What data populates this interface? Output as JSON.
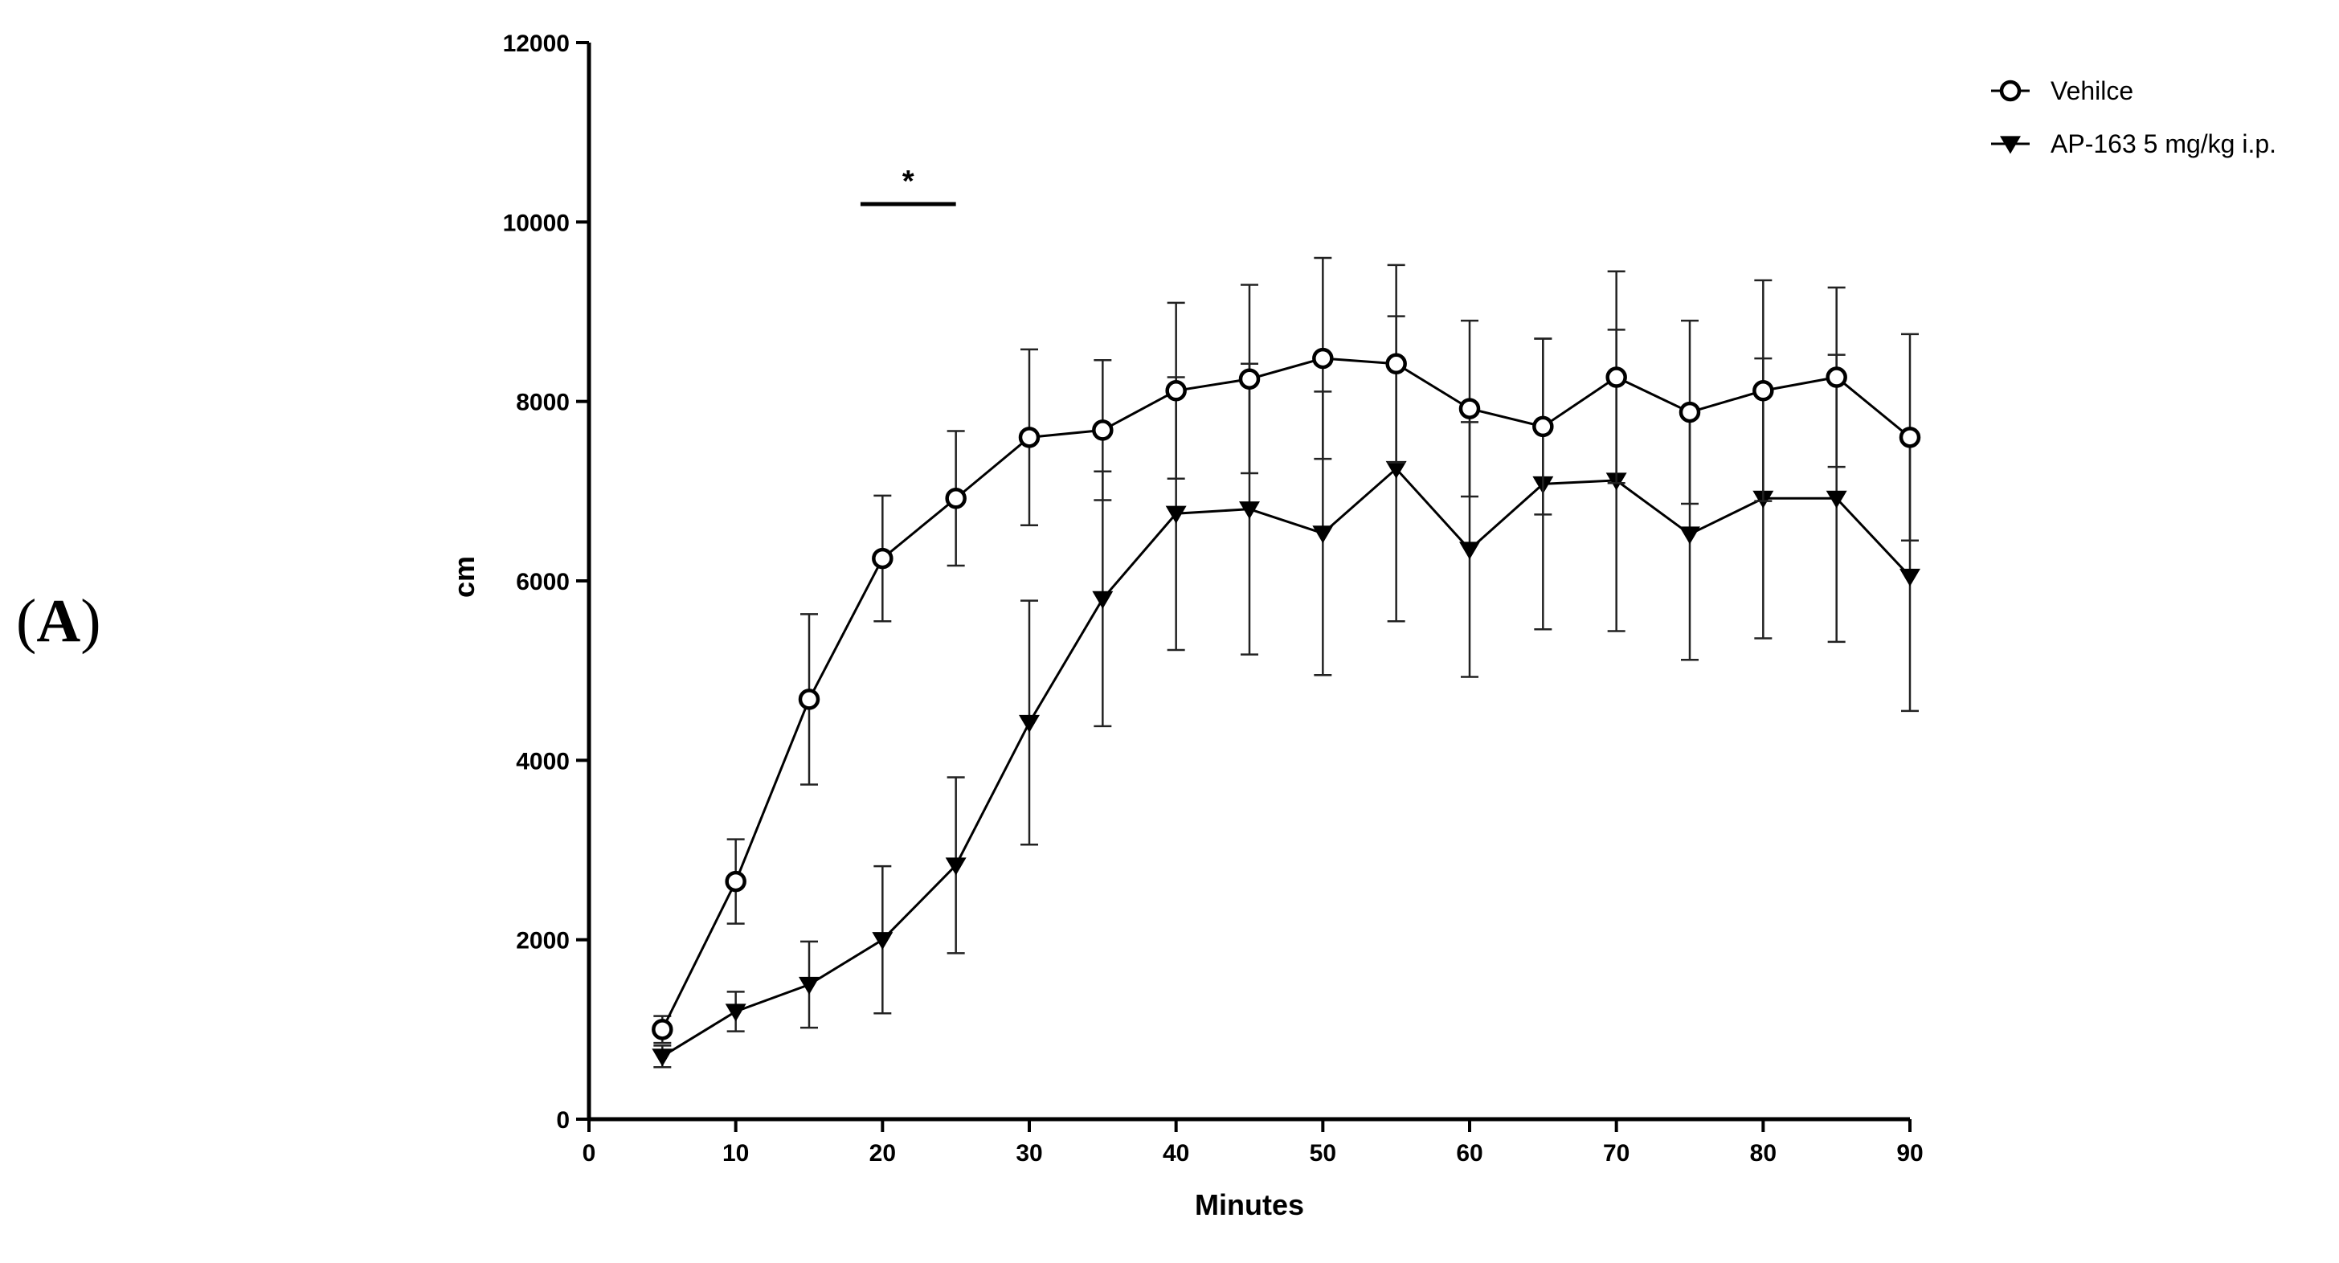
{
  "panel_label": {
    "open": "(",
    "letter": "A",
    "close": ")"
  },
  "chart_data": {
    "type": "line",
    "xlabel": "Minutes",
    "ylabel": "cm",
    "xlim": [
      0,
      90
    ],
    "ylim": [
      0,
      12000
    ],
    "x_ticks": [
      0,
      10,
      20,
      30,
      40,
      50,
      60,
      70,
      80,
      90
    ],
    "y_ticks": [
      0,
      2000,
      4000,
      6000,
      8000,
      10000,
      12000
    ],
    "grid": false,
    "legend_position": "top-right",
    "x": [
      5,
      10,
      15,
      20,
      25,
      30,
      35,
      40,
      45,
      50,
      55,
      60,
      65,
      70,
      75,
      80,
      85,
      90
    ],
    "series": [
      {
        "name": "Vehilce",
        "marker": "open-circle",
        "color": "#000000",
        "values": [
          1000,
          2650,
          4680,
          6250,
          6920,
          7600,
          7680,
          8120,
          8250,
          8480,
          8420,
          7920,
          7720,
          8270,
          7880,
          8120,
          8270,
          7600
        ],
        "error": [
          150,
          470,
          950,
          700,
          750,
          980,
          780,
          980,
          1050,
          1120,
          1100,
          980,
          980,
          1180,
          1020,
          1230,
          1000,
          1150
        ]
      },
      {
        "name": "AP-163 5 mg/kg i.p.",
        "marker": "filled-down-triangle",
        "color": "#000000",
        "values": [
          700,
          1200,
          1500,
          2000,
          2830,
          4420,
          5800,
          6750,
          6800,
          6530,
          7250,
          6350,
          7080,
          7120,
          6520,
          6920,
          6920,
          6050
        ],
        "error": [
          120,
          220,
          480,
          820,
          980,
          1360,
          1420,
          1520,
          1620,
          1580,
          1700,
          1420,
          1620,
          1680,
          1400,
          1560,
          1600,
          1500
        ]
      }
    ],
    "annotations": [
      {
        "text": "*",
        "x_start": 18.5,
        "x_end": 25,
        "y": 10200
      }
    ]
  }
}
